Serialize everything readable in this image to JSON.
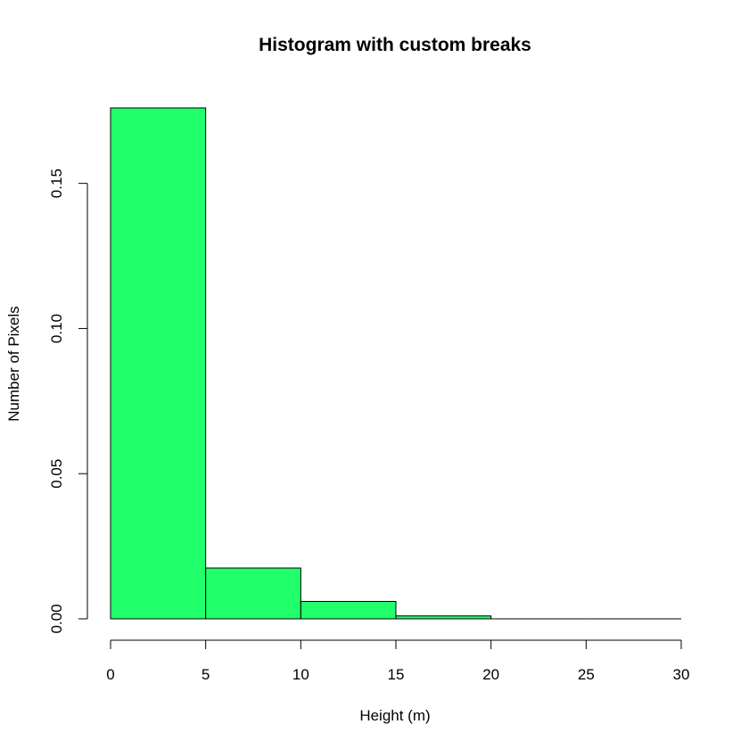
{
  "chart_data": {
    "type": "bar",
    "title": "Histogram with custom breaks",
    "xlabel": "Height (m)",
    "ylabel": "Number of Pixels",
    "breaks": [
      0,
      5,
      10,
      15,
      20,
      25,
      30
    ],
    "values": [
      0.176,
      0.0175,
      0.006,
      0.001,
      0,
      0
    ],
    "xlim": [
      0,
      30
    ],
    "ylim": [
      0,
      0.176
    ],
    "x_ticks": [
      0,
      5,
      10,
      15,
      20,
      25,
      30
    ],
    "x_tick_labels": [
      "0",
      "5",
      "10",
      "15",
      "20",
      "25",
      "30"
    ],
    "y_ticks": [
      0,
      0.05,
      0.1,
      0.15
    ],
    "y_tick_labels": [
      "0.00",
      "0.05",
      "0.10",
      "0.15"
    ],
    "bar_color": "#21ff6b",
    "grid": false
  }
}
